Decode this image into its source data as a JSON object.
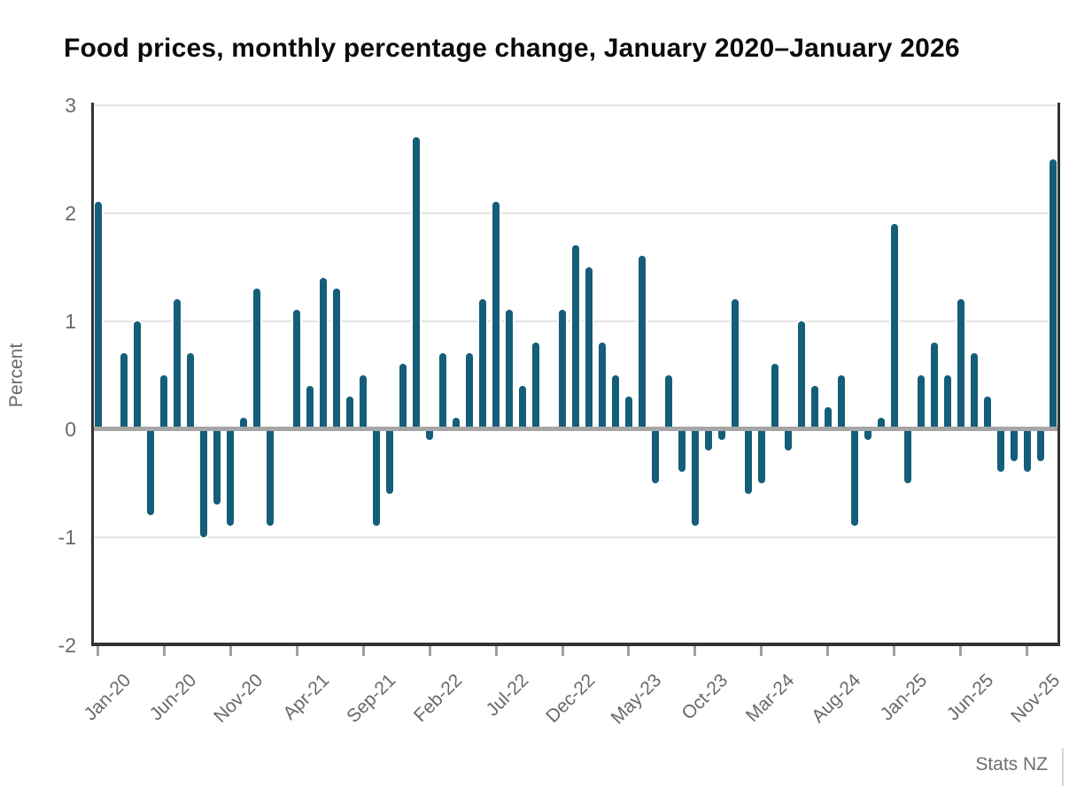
{
  "chart_data": {
    "type": "bar",
    "title": "Food prices, monthly percentage change, January 2020–January 2026",
    "ylabel": "Percent",
    "source": "Stats NZ",
    "ylim": [
      -2,
      3
    ],
    "yticks": [
      3,
      2,
      1,
      0,
      -1,
      -2
    ],
    "grid": "horizontal",
    "legend": "none",
    "colors": {
      "bar": "#155E7A",
      "zero_line": "#a6a6a6",
      "gridline": "#e4e4e4",
      "axis": "#333333",
      "tick": "#a0a0a0",
      "label_text": "#66696d",
      "title_text": "#0b0b0b",
      "source_text": "#6d6e71"
    },
    "categories": [
      "Jan-20",
      "Feb-20",
      "Mar-20",
      "Apr-20",
      "May-20",
      "Jun-20",
      "Jul-20",
      "Aug-20",
      "Sep-20",
      "Oct-20",
      "Nov-20",
      "Dec-20",
      "Jan-21",
      "Feb-21",
      "Mar-21",
      "Apr-21",
      "May-21",
      "Jun-21",
      "Jul-21",
      "Aug-21",
      "Sep-21",
      "Oct-21",
      "Nov-21",
      "Dec-21",
      "Jan-22",
      "Feb-22",
      "Mar-22",
      "Apr-22",
      "May-22",
      "Jun-22",
      "Jul-22",
      "Aug-22",
      "Sep-22",
      "Oct-22",
      "Nov-22",
      "Dec-22",
      "Jan-23",
      "Feb-23",
      "Mar-23",
      "Apr-23",
      "May-23",
      "Jun-23",
      "Jul-23",
      "Aug-23",
      "Sep-23",
      "Oct-23",
      "Nov-23",
      "Dec-23",
      "Jan-24",
      "Feb-24",
      "Mar-24",
      "Apr-24",
      "May-24",
      "Jun-24",
      "Jul-24",
      "Aug-24",
      "Sep-24",
      "Oct-24",
      "Nov-24",
      "Dec-24",
      "Jan-25",
      "Feb-25",
      "Mar-25",
      "Apr-25",
      "May-25",
      "Jun-25",
      "Jul-25",
      "Aug-25",
      "Sep-25",
      "Oct-25",
      "Nov-25",
      "Dec-25",
      "Jan-26"
    ],
    "values": [
      2.1,
      0.0,
      0.7,
      1.0,
      -0.8,
      0.5,
      1.2,
      0.7,
      -1.0,
      -0.7,
      -0.9,
      0.1,
      1.3,
      -0.9,
      0.0,
      1.1,
      0.4,
      1.4,
      1.3,
      0.3,
      0.5,
      -0.9,
      -0.6,
      0.6,
      2.7,
      -0.1,
      0.7,
      0.1,
      0.7,
      1.2,
      2.1,
      1.1,
      0.4,
      0.8,
      0.0,
      1.1,
      1.7,
      1.5,
      0.8,
      0.5,
      0.3,
      1.6,
      -0.5,
      0.5,
      -0.4,
      -0.9,
      -0.2,
      -0.1,
      1.2,
      -0.6,
      -0.5,
      0.6,
      -0.2,
      1.0,
      0.4,
      0.2,
      0.5,
      -0.9,
      -0.1,
      0.1,
      1.9,
      -0.5,
      0.5,
      0.8,
      0.5,
      1.2,
      0.7,
      0.3,
      -0.4,
      -0.3,
      -0.4,
      -0.3,
      2.5
    ],
    "xtick_every": 5,
    "xtick_labels": [
      "Jan-20",
      "Jun-20",
      "Nov-20",
      "Apr-21",
      "Sep-21",
      "Feb-22",
      "Jul-22",
      "Dec-22",
      "May-23",
      "Oct-23",
      "Mar-24",
      "Aug-24",
      "Jan-25",
      "Jun-25",
      "Nov-25"
    ]
  }
}
